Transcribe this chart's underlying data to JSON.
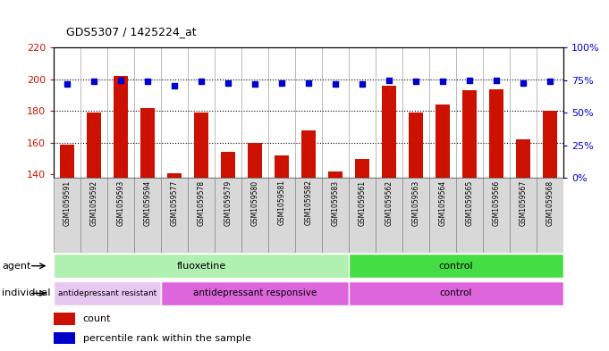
{
  "title": "GDS5307 / 1425224_at",
  "samples": [
    "GSM1059591",
    "GSM1059592",
    "GSM1059593",
    "GSM1059594",
    "GSM1059577",
    "GSM1059578",
    "GSM1059579",
    "GSM1059580",
    "GSM1059581",
    "GSM1059582",
    "GSM1059583",
    "GSM1059561",
    "GSM1059562",
    "GSM1059563",
    "GSM1059564",
    "GSM1059565",
    "GSM1059566",
    "GSM1059567",
    "GSM1059568"
  ],
  "counts": [
    159,
    179,
    202,
    182,
    141,
    179,
    154,
    160,
    152,
    168,
    142,
    150,
    196,
    179,
    184,
    193,
    194,
    162,
    180
  ],
  "percentiles": [
    72,
    74,
    75,
    74,
    71,
    74,
    73,
    72,
    73,
    73,
    72,
    72,
    75,
    74,
    74,
    75,
    75,
    73,
    74
  ],
  "ylim_left": [
    138,
    220
  ],
  "ylim_right": [
    0,
    100
  ],
  "yticks_left": [
    140,
    160,
    180,
    200,
    220
  ],
  "yticks_right": [
    0,
    25,
    50,
    75,
    100
  ],
  "bar_color": "#cc1100",
  "dot_color": "#0000cc",
  "grid_lines": [
    160,
    180,
    200
  ],
  "agent_groups": [
    {
      "label": "fluoxetine",
      "start": 0,
      "end": 10,
      "color": "#b0f0b0"
    },
    {
      "label": "control",
      "start": 11,
      "end": 18,
      "color": "#44dd44"
    }
  ],
  "individual_groups": [
    {
      "label": "antidepressant resistant",
      "start": 0,
      "end": 3,
      "color": "#e8c8f0"
    },
    {
      "label": "antidepressant responsive",
      "start": 4,
      "end": 10,
      "color": "#dd66dd"
    },
    {
      "label": "control",
      "start": 11,
      "end": 18,
      "color": "#dd66dd"
    }
  ],
  "fig_width": 6.81,
  "fig_height": 3.93,
  "dpi": 100
}
